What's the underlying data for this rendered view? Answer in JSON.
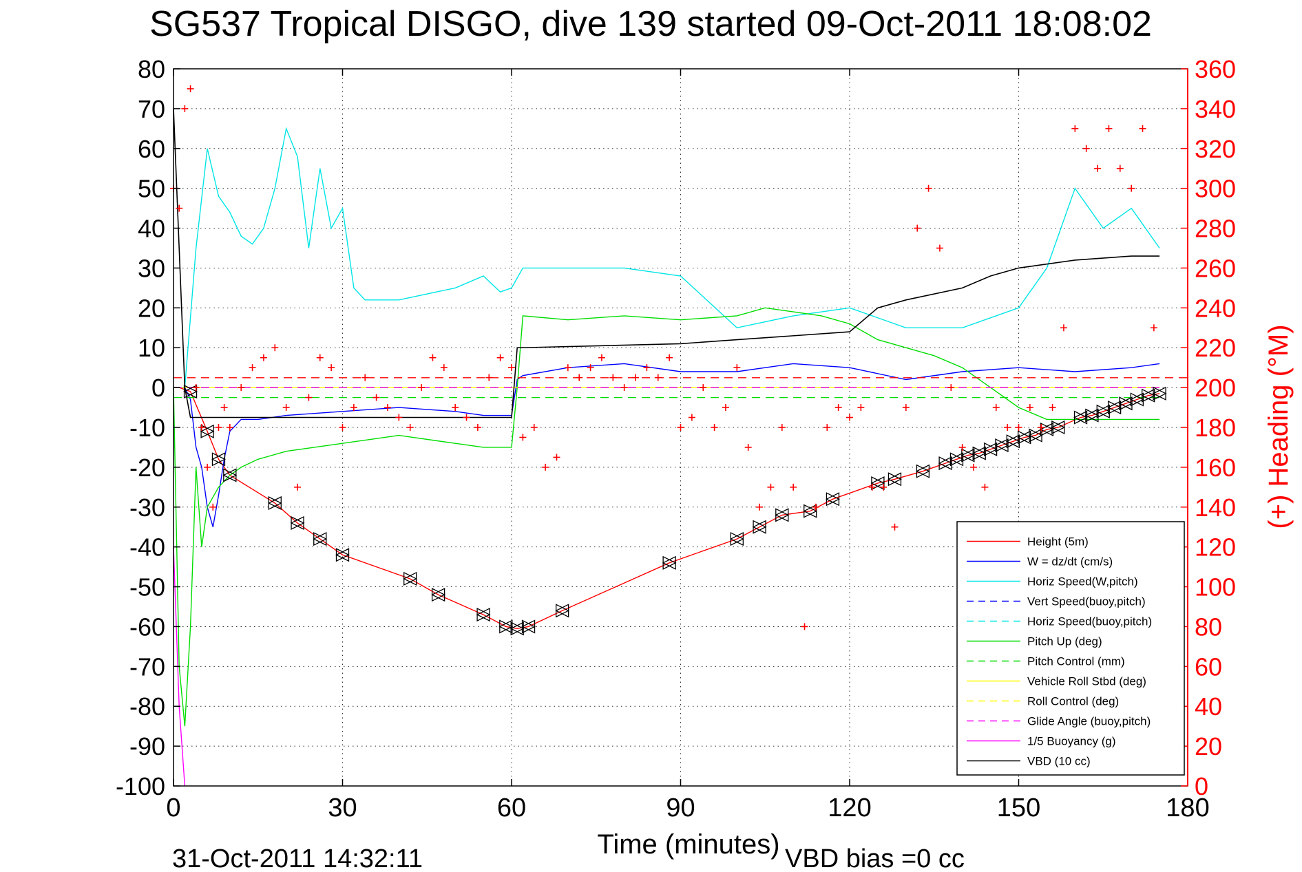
{
  "chart_data": {
    "type": "line",
    "title": "SG537 Tropical DISGO, dive 139 started 09-Oct-2011 18:08:02",
    "xlabel": "Time (minutes)",
    "ylabel_right": "(+) Heading (°M)",
    "footer_date": "31-Oct-2011 14:32:11",
    "footer_note": "VBD bias =0 cc",
    "xlim": [
      0,
      180
    ],
    "ylim_left": [
      -100,
      80
    ],
    "ylim_right": [
      0,
      360
    ],
    "x_ticks": [
      "0",
      "30",
      "60",
      "90",
      "120",
      "150",
      "180"
    ],
    "y_ticks_left": [
      "80",
      "70",
      "60",
      "50",
      "40",
      "30",
      "20",
      "10",
      "0",
      "-10",
      "-20",
      "-30",
      "-40",
      "-50",
      "-60",
      "-70",
      "-80",
      "-90",
      "-100"
    ],
    "y_ticks_right": [
      "360",
      "340",
      "320",
      "300",
      "280",
      "260",
      "240",
      "220",
      "200",
      "180",
      "160",
      "140",
      "120",
      "100",
      "80",
      "60",
      "40",
      "20",
      "0"
    ],
    "grid": true,
    "legend_position": "bottom-right",
    "colors": {
      "height": "#ff0000",
      "w": "#0000ff",
      "horiz_speed": "#00e5e5",
      "vert_speed_buoy": "#0000ff",
      "horiz_speed_buoy": "#00e5e5",
      "pitch_up": "#00dd00",
      "pitch_control": "#00dd00",
      "vehicle_roll": "#ffff00",
      "roll_control": "#ffff00",
      "glide_angle": "#ff00ff",
      "buoyancy": "#ff00ff",
      "vbd": "#000000",
      "heading": "#ff0000",
      "right_axis": "#ff0000"
    },
    "series": [
      {
        "name": "Height (5m)",
        "style": "solid",
        "x": [
          0,
          1,
          3,
          6,
          8,
          10,
          18,
          22,
          26,
          30,
          42,
          47,
          55,
          59,
          61,
          63,
          69,
          88,
          100,
          104,
          108,
          113,
          117,
          125,
          128,
          133,
          137,
          139,
          141,
          143,
          145,
          147,
          149,
          151,
          153,
          155,
          157,
          161,
          163,
          165,
          167,
          169,
          171,
          173,
          175
        ],
        "values": [
          0,
          0,
          -1,
          -11,
          -18,
          -22,
          -29,
          -34,
          -38,
          -42,
          -48,
          -52,
          -57,
          -60,
          -60.5,
          -60,
          -56,
          -44,
          -38,
          -35,
          -32,
          -31,
          -28,
          -24,
          -23,
          -21,
          -19,
          -18,
          -17,
          -16.5,
          -15.5,
          -14.5,
          -13.5,
          -12.5,
          -12,
          -10.5,
          -10,
          -7.5,
          -7,
          -6,
          -5,
          -4,
          -3,
          -2,
          -1.5
        ]
      },
      {
        "name": "W = dz/dt (cm/s)",
        "style": "solid",
        "x": [
          0,
          2,
          3,
          4,
          5,
          6,
          7,
          8,
          9,
          10,
          12,
          15,
          20,
          30,
          40,
          50,
          55,
          60,
          61,
          62,
          70,
          80,
          90,
          100,
          110,
          120,
          130,
          140,
          150,
          160,
          170,
          175
        ],
        "values": [
          0,
          0,
          -3,
          -15,
          -20,
          -30,
          -35,
          -27,
          -18,
          -11,
          -8,
          -8,
          -7,
          -6,
          -5,
          -6,
          -7,
          -7,
          2,
          3,
          5,
          6,
          4,
          4,
          6,
          5,
          2,
          4,
          5,
          4,
          5,
          6
        ]
      },
      {
        "name": "Horiz Speed(W,pitch)",
        "style": "solid",
        "x": [
          0,
          2,
          4,
          6,
          8,
          10,
          12,
          14,
          16,
          18,
          20,
          22,
          24,
          26,
          28,
          30,
          32,
          34,
          40,
          50,
          55,
          58,
          60,
          62,
          70,
          80,
          90,
          100,
          110,
          120,
          130,
          140,
          150,
          155,
          160,
          165,
          170,
          175
        ],
        "values": [
          0,
          0,
          35,
          60,
          48,
          44,
          38,
          36,
          40,
          50,
          65,
          58,
          35,
          55,
          40,
          45,
          25,
          22,
          22,
          25,
          28,
          24,
          25,
          30,
          30,
          30,
          28,
          15,
          18,
          20,
          15,
          15,
          20,
          30,
          50,
          40,
          45,
          35
        ]
      },
      {
        "name": "Vert Speed(buoy,pitch)",
        "style": "dash",
        "x": [
          0,
          175
        ],
        "values": [
          0,
          0
        ]
      },
      {
        "name": "Horiz Speed(buoy,pitch)",
        "style": "dash",
        "x": [
          0,
          175
        ],
        "values": [
          0,
          0
        ]
      },
      {
        "name": "Pitch Up (deg)",
        "style": "solid",
        "x": [
          0,
          1,
          2,
          3,
          4,
          5,
          6,
          8,
          10,
          12,
          15,
          20,
          30,
          40,
          50,
          55,
          60,
          61,
          62,
          70,
          80,
          90,
          100,
          105,
          110,
          115,
          120,
          125,
          130,
          135,
          140,
          145,
          150,
          155,
          160,
          165,
          170,
          175
        ],
        "values": [
          0,
          -70,
          -85,
          -60,
          -20,
          -40,
          -30,
          -25,
          -22,
          -20,
          -18,
          -16,
          -14,
          -12,
          -14,
          -15,
          -15,
          0,
          18,
          17,
          18,
          17,
          18,
          20,
          19,
          18,
          16,
          12,
          10,
          8,
          5,
          0,
          -5,
          -8,
          -8,
          -8,
          -8,
          -8
        ]
      },
      {
        "name": "Pitch Control (mm)",
        "style": "dash",
        "x": [
          0,
          175
        ],
        "values": [
          -2.5,
          -2.5
        ]
      },
      {
        "name": "Vehicle Roll Stbd (deg)",
        "style": "solid",
        "x": [
          0,
          175
        ],
        "values": [
          0,
          0
        ]
      },
      {
        "name": "Roll Control (deg)",
        "style": "dash",
        "x": [
          0,
          175
        ],
        "values": [
          0,
          0
        ]
      },
      {
        "name": "Glide Angle (buoy,pitch)",
        "style": "dash",
        "x": [
          0,
          175
        ],
        "values": [
          0,
          0
        ]
      },
      {
        "name": "1/5 Buoyancy (g)",
        "style": "solid",
        "x": [
          0,
          1,
          2
        ],
        "values": [
          -40,
          -80,
          -100
        ]
      },
      {
        "name": "VBD (10 cc)",
        "style": "solid",
        "x": [
          0,
          2,
          3,
          60,
          61,
          62,
          90,
          100,
          120,
          125,
          130,
          140,
          145,
          150,
          155,
          160,
          170,
          175
        ],
        "values": [
          70,
          0,
          -7.5,
          -7.5,
          10,
          10,
          11,
          12,
          14,
          20,
          22,
          25,
          28,
          30,
          31,
          32,
          33,
          33
        ]
      }
    ],
    "heading_series": {
      "name": "(+) Heading",
      "x": [
        0,
        1,
        2,
        3,
        4,
        5,
        6,
        7,
        8,
        9,
        10,
        12,
        14,
        16,
        18,
        20,
        22,
        24,
        26,
        28,
        30,
        32,
        34,
        36,
        38,
        40,
        42,
        44,
        46,
        48,
        50,
        52,
        54,
        56,
        58,
        60,
        62,
        64,
        66,
        68,
        70,
        72,
        74,
        76,
        78,
        80,
        82,
        84,
        86,
        88,
        90,
        92,
        94,
        96,
        98,
        100,
        102,
        104,
        106,
        108,
        110,
        112,
        114,
        116,
        118,
        120,
        122,
        124,
        126,
        128,
        130,
        132,
        134,
        136,
        138,
        140,
        142,
        144,
        146,
        148,
        150,
        152,
        154,
        156,
        158,
        160,
        162,
        164,
        166,
        168,
        170,
        172,
        174
      ],
      "values": [
        300,
        290,
        340,
        350,
        200,
        180,
        160,
        140,
        180,
        190,
        180,
        200,
        210,
        215,
        220,
        190,
        150,
        195,
        215,
        210,
        180,
        190,
        205,
        195,
        190,
        185,
        180,
        200,
        215,
        210,
        190,
        185,
        180,
        205,
        215,
        210,
        175,
        180,
        160,
        165,
        210,
        205,
        210,
        215,
        205,
        200,
        205,
        210,
        205,
        215,
        180,
        185,
        200,
        180,
        190,
        210,
        170,
        140,
        150,
        180,
        150,
        80,
        140,
        180,
        190,
        185,
        190,
        150,
        150,
        130,
        190,
        280,
        300,
        270,
        200,
        170,
        160,
        150,
        190,
        180,
        180,
        190,
        180,
        190,
        230,
        330,
        320,
        310,
        330,
        310,
        300,
        330,
        230
      ]
    }
  },
  "legend": {
    "items": [
      {
        "label": "Height (5m)",
        "color": "#ff0000",
        "dash": false
      },
      {
        "label": "W = dz/dt (cm/s)",
        "color": "#0000ff",
        "dash": false
      },
      {
        "label": "Horiz Speed(W,pitch)",
        "color": "#00e5e5",
        "dash": false
      },
      {
        "label": "Vert Speed(buoy,pitch)",
        "color": "#0000ff",
        "dash": true
      },
      {
        "label": "Horiz Speed(buoy,pitch)",
        "color": "#00e5e5",
        "dash": true
      },
      {
        "label": "Pitch Up (deg)",
        "color": "#00dd00",
        "dash": false
      },
      {
        "label": "Pitch Control (mm)",
        "color": "#00dd00",
        "dash": true
      },
      {
        "label": "Vehicle Roll Stbd (deg)",
        "color": "#ffff00",
        "dash": false
      },
      {
        "label": "Roll Control (deg)",
        "color": "#ffff00",
        "dash": true
      },
      {
        "label": "Glide Angle (buoy,pitch)",
        "color": "#ff00ff",
        "dash": true
      },
      {
        "label": "1/5 Buoyancy (g)",
        "color": "#ff00ff",
        "dash": false
      },
      {
        "label": "VBD (10 cc)",
        "color": "#000000",
        "dash": false
      }
    ]
  }
}
